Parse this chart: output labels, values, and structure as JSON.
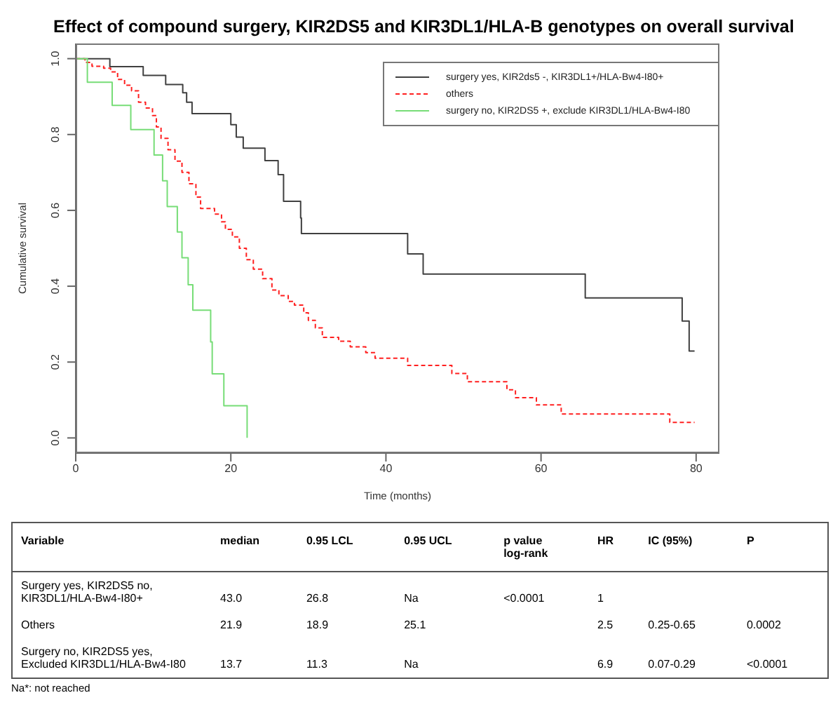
{
  "chart_data": {
    "type": "step",
    "title": "Effect of compound surgery, KIR2DS5 and KIR3DL1/HLA-B genotypes on overall survival",
    "xlabel": "Time (months)",
    "ylabel": "Cumulative survival",
    "xlim": [
      0,
      83
    ],
    "xticks": [
      0,
      20,
      40,
      60,
      80
    ],
    "ylim": [
      -0.04,
      1.04
    ],
    "yticks": [
      {
        "value": 0,
        "label": "0.0"
      },
      {
        "value": 0.2,
        "label": "0.2"
      },
      {
        "value": 0.4,
        "label": "0.4"
      },
      {
        "value": 0.6,
        "label": "0.6"
      },
      {
        "value": 0.8,
        "label": "0.8"
      },
      {
        "value": 1,
        "label": "1.0"
      }
    ],
    "legend": "top right",
    "marker": "none",
    "series": [
      {
        "name": "surgery yes, KIR2ds5 -, KIR3DL1+/HLA-Bw4-I80+",
        "color": "#404040",
        "line_style": "solid",
        "x": [
          0,
          4.4,
          8.7,
          11.6,
          13.8,
          14.3,
          15.0,
          20.0,
          20.7,
          21.6,
          24.4,
          26.1,
          26.8,
          29.0,
          29.1,
          42.8,
          44.8,
          65.7,
          78.2,
          79.1,
          79.8
        ],
        "values": [
          1.0,
          0.979,
          0.956,
          0.932,
          0.91,
          0.885,
          0.855,
          0.826,
          0.793,
          0.764,
          0.731,
          0.694,
          0.624,
          0.58,
          0.539,
          0.485,
          0.432,
          0.369,
          0.308,
          0.229,
          0.229
        ]
      },
      {
        "name": "others",
        "color": "#ff2020",
        "line_style": "dashed",
        "x": [
          0,
          1.2,
          2.1,
          3.6,
          4.5,
          5.4,
          6.3,
          7.2,
          8.1,
          9.0,
          9.9,
          10.4,
          11.0,
          11.9,
          12.8,
          13.7,
          14.6,
          15.5,
          16.1,
          17.9,
          18.8,
          19.3,
          20.2,
          21.1,
          22.0,
          22.9,
          24.1,
          25.3,
          26.2,
          27.4,
          28.2,
          29.4,
          30.0,
          30.9,
          31.8,
          33.9,
          35.4,
          37.4,
          38.6,
          42.8,
          48.5,
          50.5,
          55.6,
          56.7,
          59.4,
          62.6,
          76.6,
          79.8
        ],
        "values": [
          1.0,
          0.99,
          0.98,
          0.975,
          0.965,
          0.945,
          0.93,
          0.915,
          0.885,
          0.87,
          0.85,
          0.82,
          0.79,
          0.76,
          0.73,
          0.7,
          0.67,
          0.635,
          0.605,
          0.59,
          0.57,
          0.55,
          0.53,
          0.5,
          0.47,
          0.445,
          0.42,
          0.39,
          0.375,
          0.36,
          0.35,
          0.33,
          0.31,
          0.29,
          0.265,
          0.255,
          0.24,
          0.225,
          0.21,
          0.191,
          0.17,
          0.148,
          0.127,
          0.106,
          0.087,
          0.063,
          0.041,
          0.041
        ]
      },
      {
        "name": "surgery no, KIR2DS5 +, exclude KIR3DL1/HLA-Bw4-I80",
        "color": "#77dd77",
        "line_style": "solid",
        "x": [
          0,
          1.5,
          4.7,
          7.1,
          10.1,
          11.2,
          11.8,
          13.1,
          13.7,
          14.5,
          15.1,
          17.4,
          17.6,
          19.1,
          22.1
        ],
        "values": [
          1.0,
          0.938,
          0.877,
          0.813,
          0.746,
          0.678,
          0.61,
          0.543,
          0.475,
          0.404,
          0.337,
          0.253,
          0.169,
          0.085,
          0.0
        ]
      }
    ],
    "annotations": [
      "Variable",
      "median",
      "0.95 LCL",
      "0.95 UCL",
      "p value\nlog-rank",
      "HR",
      "IC (95%)",
      "P",
      "Surgery yes, KIR2DS5 no,\nKIR3DL1/HLA-Bw4-I80+",
      "43.0",
      "26.8",
      "Na",
      "<0.0001",
      "1",
      null,
      null,
      "Others",
      "21.9",
      "18.9",
      "25.1",
      null,
      "2.5",
      "0.25-0.65",
      "0.0002",
      "Surgery no, KIR2DS5 yes,\nExcluded KIR3DL1/HLA-Bw4-I80",
      "13.7",
      "11.3",
      "Na",
      null,
      "6.9",
      "0.07-0.29",
      "<0.0001",
      "Na*: not reached"
    ]
  }
}
